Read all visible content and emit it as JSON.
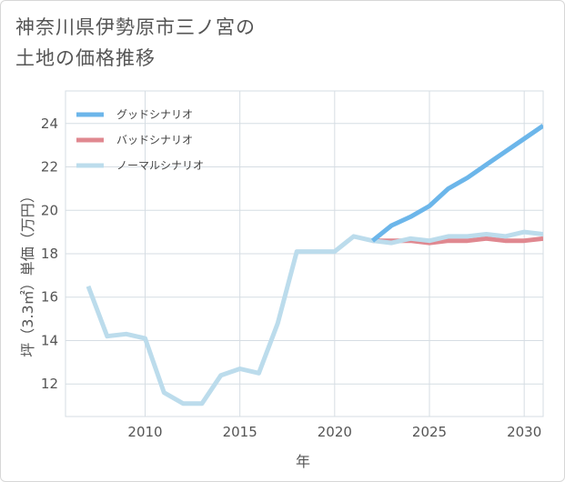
{
  "chart_data": {
    "type": "line",
    "title": "神奈川県伊勢原市三ノ宮の\n土地の価格推移",
    "xlabel": "年",
    "ylabel": "坪（3.3㎡）単価（万円）",
    "xlim": [
      2005.8,
      2031
    ],
    "ylim": [
      10.5,
      25.5
    ],
    "xticks": [
      2010,
      2015,
      2020,
      2025,
      2030
    ],
    "yticks": [
      12,
      14,
      16,
      18,
      20,
      22,
      24
    ],
    "grid": true,
    "legend_position": "top-left",
    "series": [
      {
        "name": "グッドシナリオ",
        "color": "#6cb6ea",
        "x": [
          2022,
          2023,
          2024,
          2025,
          2026,
          2027,
          2028,
          2029,
          2030,
          2031
        ],
        "values": [
          18.6,
          19.3,
          19.7,
          20.2,
          21.0,
          21.5,
          22.1,
          22.7,
          23.3,
          23.9
        ]
      },
      {
        "name": "バッドシナリオ",
        "color": "#e08890",
        "x": [
          2022,
          2023,
          2024,
          2025,
          2026,
          2027,
          2028,
          2029,
          2030,
          2031
        ],
        "values": [
          18.6,
          18.6,
          18.6,
          18.5,
          18.6,
          18.6,
          18.7,
          18.6,
          18.6,
          18.7
        ]
      },
      {
        "name": "ノーマルシナリオ",
        "color": "#bcdcec",
        "x": [
          2007,
          2008,
          2009,
          2010,
          2011,
          2012,
          2013,
          2014,
          2015,
          2016,
          2017,
          2018,
          2019,
          2020,
          2021,
          2022,
          2023,
          2024,
          2025,
          2026,
          2027,
          2028,
          2029,
          2030,
          2031
        ],
        "values": [
          16.5,
          14.2,
          14.3,
          14.1,
          11.6,
          11.1,
          11.1,
          12.4,
          12.7,
          12.5,
          14.8,
          18.1,
          18.1,
          18.1,
          18.8,
          18.6,
          18.5,
          18.7,
          18.6,
          18.8,
          18.8,
          18.9,
          18.8,
          19.0,
          18.9
        ]
      }
    ]
  }
}
